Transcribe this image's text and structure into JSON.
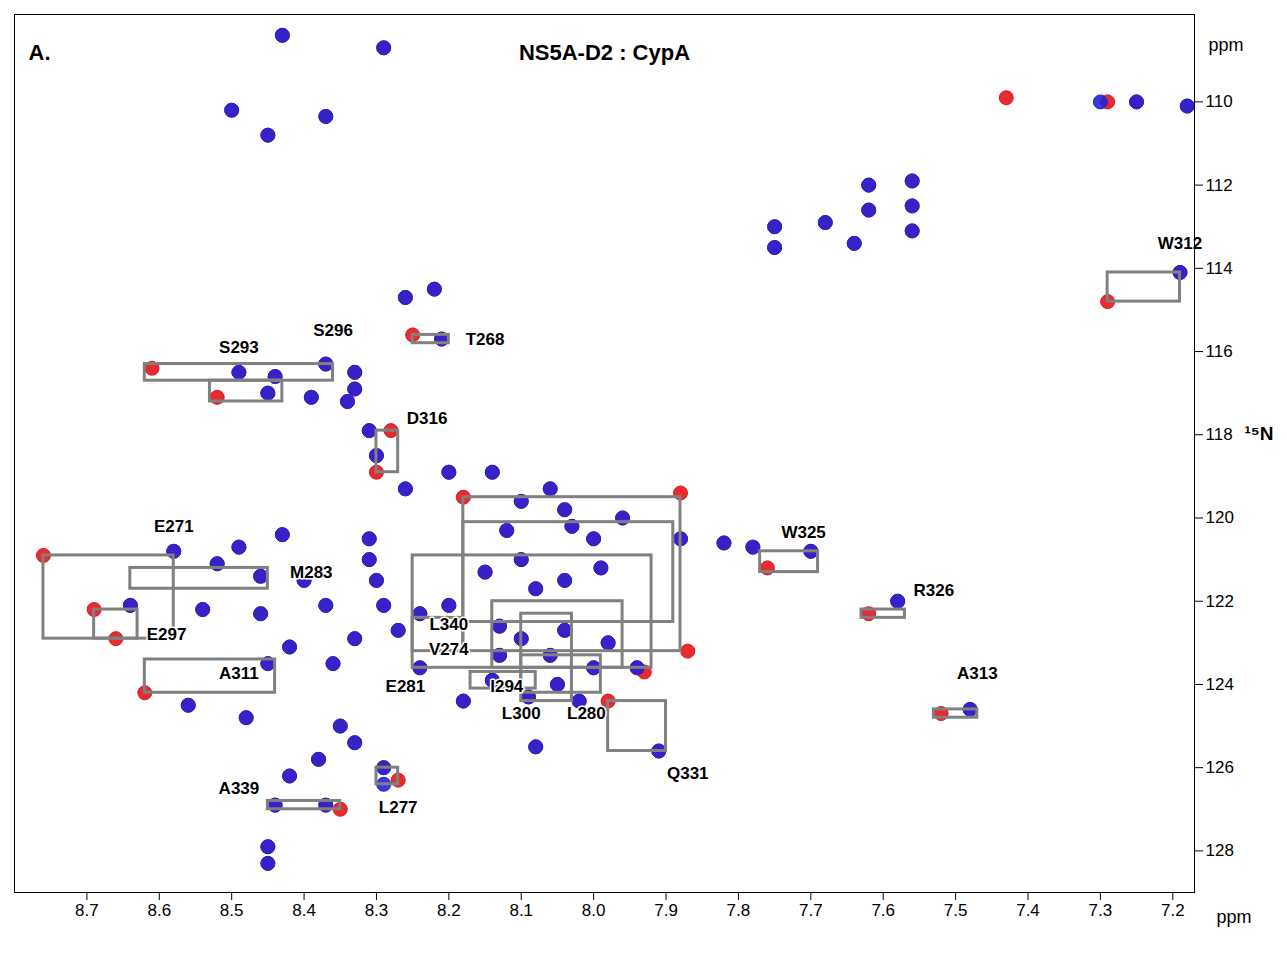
{
  "chart_data": {
    "type": "scatter",
    "title": "NS5A-D2 : CypA",
    "panel": "A.",
    "xlabel": "ppm",
    "ylabel": "¹⁵N",
    "yunit": "ppm",
    "xlim": [
      8.8,
      7.17
    ],
    "ylim": [
      107.9,
      129.0
    ],
    "xticks": [
      8.7,
      8.6,
      8.5,
      8.4,
      8.3,
      8.2,
      8.1,
      {
        "value": 8,
        "label": "8.0"
      },
      7.9,
      7.8,
      7.7,
      7.6,
      7.5,
      7.4,
      7.3,
      7.2
    ],
    "yticks": [
      110,
      112,
      114,
      116,
      118,
      120,
      122,
      124,
      126,
      128
    ],
    "grid": false,
    "series": [
      {
        "color": "#e3141b",
        "x": [
          8.43,
          8.29,
          8.5,
          8.37,
          8.45,
          7.43,
          7.29,
          7.25,
          7.18,
          7.62,
          7.62,
          7.56,
          7.56,
          7.56,
          7.75,
          7.75,
          7.68,
          7.64,
          7.19,
          7.29,
          8.26,
          8.22,
          8.21,
          8.25,
          8.61,
          8.52,
          8.49,
          8.44,
          8.37,
          8.33,
          8.33,
          8.45,
          8.39,
          8.34,
          8.31,
          8.28,
          8.3,
          8.3,
          8.2,
          8.14,
          8.18,
          7.88,
          8.26,
          8.06,
          8.04,
          8.1,
          8.03,
          8.12,
          7.96,
          8.0,
          7.88,
          7.82,
          7.78,
          7.76,
          7.7,
          8.76,
          8.58,
          8.49,
          8.43,
          8.52,
          8.46,
          8.4,
          8.31,
          8.31,
          8.3,
          8.37,
          8.46,
          8.54,
          8.64,
          8.69,
          8.66,
          8.29,
          8.24,
          8.2,
          8.15,
          8.1,
          8.08,
          7.99,
          8.04,
          8.27,
          8.33,
          8.42,
          8.36,
          8.45,
          8.62,
          8.24,
          8.13,
          8.1,
          8.04,
          8.13,
          8.06,
          7.98,
          8.0,
          7.94,
          7.87,
          7.93,
          8.14,
          8.09,
          8.05,
          8.02,
          7.98,
          8.56,
          8.48,
          8.18,
          8.08,
          7.91,
          8.35,
          8.33,
          8.38,
          8.42,
          8.29,
          8.27,
          8.35,
          8.44,
          8.37,
          8.45,
          8.45,
          7.62,
          7.58,
          7.52,
          7.48
        ],
        "y": [
          108.4,
          108.7,
          110.2,
          110.35,
          110.8,
          109.9,
          110.0,
          110.0,
          110.1,
          112.0,
          112.6,
          111.9,
          112.5,
          113.1,
          113.0,
          113.5,
          112.9,
          113.4,
          114.1,
          114.8,
          114.7,
          114.5,
          115.7,
          115.6,
          116.4,
          117.1,
          116.5,
          116.6,
          116.3,
          116.5,
          116.9,
          117.0,
          117.1,
          117.2,
          117.9,
          117.9,
          118.5,
          118.9,
          118.9,
          118.9,
          119.5,
          119.4,
          119.3,
          119.3,
          119.8,
          119.6,
          120.2,
          120.3,
          120.0,
          120.5,
          120.5,
          120.6,
          120.7,
          121.2,
          120.8,
          120.9,
          120.8,
          120.7,
          120.4,
          121.1,
          121.4,
          121.5,
          121.0,
          120.5,
          121.5,
          122.1,
          122.3,
          122.2,
          122.1,
          122.2,
          122.9,
          122.1,
          122.3,
          122.1,
          121.3,
          121.0,
          121.7,
          121.2,
          121.5,
          122.7,
          122.9,
          123.1,
          123.5,
          123.5,
          124.2,
          123.6,
          122.6,
          122.9,
          122.7,
          123.3,
          123.3,
          123.0,
          123.6,
          123.6,
          123.2,
          123.7,
          123.9,
          124.3,
          124.0,
          124.4,
          124.4,
          124.5,
          124.8,
          124.4,
          125.5,
          125.6,
          125.0,
          125.4,
          125.8,
          126.2,
          126.0,
          126.3,
          127.0,
          126.9,
          126.9,
          127.9,
          128.3,
          122.3,
          122.0,
          124.7,
          124.6
        ]
      },
      {
        "color": "#2222d8",
        "x": [
          8.43,
          8.29,
          8.5,
          8.37,
          8.45,
          7.3,
          7.25,
          7.18,
          7.62,
          7.62,
          7.56,
          7.56,
          7.56,
          7.75,
          7.75,
          7.68,
          7.64,
          7.19,
          8.26,
          8.22,
          8.21,
          8.49,
          8.44,
          8.37,
          8.33,
          8.33,
          8.45,
          8.39,
          8.34,
          8.31,
          8.3,
          8.2,
          8.14,
          8.26,
          8.06,
          8.04,
          8.1,
          8.03,
          8.12,
          7.96,
          8.0,
          7.88,
          7.82,
          7.78,
          7.7,
          8.58,
          8.49,
          8.43,
          8.52,
          8.46,
          8.4,
          8.31,
          8.31,
          8.3,
          8.37,
          8.46,
          8.54,
          8.64,
          8.29,
          8.24,
          8.2,
          8.15,
          8.1,
          8.08,
          7.99,
          8.04,
          8.27,
          8.33,
          8.42,
          8.36,
          8.45,
          8.24,
          8.13,
          8.1,
          8.04,
          8.13,
          8.06,
          7.98,
          8.0,
          7.94,
          8.14,
          8.09,
          8.05,
          8.02,
          8.56,
          8.48,
          8.18,
          8.08,
          7.91,
          8.35,
          8.33,
          8.38,
          8.42,
          8.29,
          8.29,
          8.44,
          8.37,
          8.45,
          8.45,
          7.58,
          7.48
        ],
        "y": [
          108.4,
          108.7,
          110.2,
          110.35,
          110.8,
          110.0,
          110.0,
          110.1,
          112.0,
          112.6,
          111.9,
          112.5,
          113.1,
          113.0,
          113.5,
          112.9,
          113.4,
          114.1,
          114.7,
          114.5,
          115.7,
          116.5,
          116.6,
          116.3,
          116.5,
          116.9,
          117.0,
          117.1,
          117.2,
          117.9,
          118.5,
          118.9,
          118.9,
          119.3,
          119.3,
          119.8,
          119.6,
          120.2,
          120.3,
          120.0,
          120.5,
          120.5,
          120.6,
          120.7,
          120.8,
          120.8,
          120.7,
          120.4,
          121.1,
          121.4,
          121.5,
          121.0,
          120.5,
          121.5,
          122.1,
          122.3,
          122.2,
          122.1,
          122.1,
          122.3,
          122.1,
          121.3,
          121.0,
          121.7,
          121.2,
          121.5,
          122.7,
          122.9,
          123.1,
          123.5,
          123.5,
          123.6,
          122.6,
          122.9,
          122.7,
          123.3,
          123.3,
          123.0,
          123.6,
          123.6,
          123.9,
          124.3,
          124.0,
          124.4,
          124.5,
          124.8,
          124.4,
          125.5,
          125.6,
          125.0,
          125.4,
          125.8,
          126.2,
          126.0,
          126.4,
          126.9,
          126.9,
          127.9,
          128.3,
          122.0,
          124.6
        ]
      }
    ],
    "boxes": {
      "color": "#808080",
      "x1": [
        7.29,
        8.25,
        8.62,
        8.53,
        8.3,
        8.76,
        8.64,
        8.69,
        8.62,
        8.45,
        8.3,
        7.77,
        7.63,
        7.53,
        7.98,
        8.18,
        8.18,
        8.25,
        8.14,
        8.1,
        8.25,
        8.17,
        8.1
      ],
      "x2": [
        7.19,
        8.2,
        8.36,
        8.43,
        8.27,
        8.58,
        8.45,
        8.63,
        8.44,
        8.35,
        8.27,
        7.69,
        7.57,
        7.47,
        7.9,
        7.88,
        7.89,
        7.92,
        7.96,
        8.03,
        8.18,
        8.08,
        7.99
      ],
      "y1": [
        114.1,
        115.6,
        116.3,
        116.7,
        117.9,
        120.9,
        121.2,
        122.2,
        123.4,
        126.8,
        126.0,
        120.8,
        122.2,
        124.6,
        124.4,
        119.5,
        120.1,
        120.9,
        122.0,
        122.3,
        122.4,
        123.7,
        123.3
      ],
      "y2": [
        114.8,
        115.8,
        116.7,
        117.2,
        118.9,
        122.9,
        121.7,
        122.9,
        124.2,
        127.0,
        126.4,
        121.3,
        122.4,
        124.8,
        125.6,
        123.2,
        122.5,
        123.6,
        123.6,
        124.4,
        123.2,
        124.1,
        124.2
      ]
    },
    "annotations": [
      {
        "text": "W312",
        "x": 7.19,
        "y": 113.4
      },
      {
        "text": "T268",
        "x": 8.15,
        "y": 115.7
      },
      {
        "text": "S293",
        "x": 8.49,
        "y": 115.9
      },
      {
        "text": "S296",
        "x": 8.36,
        "y": 115.5
      },
      {
        "text": "D316",
        "x": 8.23,
        "y": 117.6
      },
      {
        "text": "E271",
        "x": 8.58,
        "y": 120.2
      },
      {
        "text": "M283",
        "x": 8.39,
        "y": 121.3
      },
      {
        "text": "E297",
        "x": 8.59,
        "y": 122.8
      },
      {
        "text": "L340",
        "x": 8.2,
        "y": 122.55
      },
      {
        "text": "V274",
        "x": 8.2,
        "y": 123.15
      },
      {
        "text": "A311",
        "x": 8.49,
        "y": 123.75
      },
      {
        "text": "E281",
        "x": 8.26,
        "y": 124.05
      },
      {
        "text": "I294",
        "x": 8.12,
        "y": 124.05
      },
      {
        "text": "L300",
        "x": 8.1,
        "y": 124.7
      },
      {
        "text": "L280",
        "x": 8.01,
        "y": 124.7
      },
      {
        "text": "Q331",
        "x": 7.87,
        "y": 126.15
      },
      {
        "text": "A339",
        "x": 8.49,
        "y": 126.5
      },
      {
        "text": "L277",
        "x": 8.27,
        "y": 126.95
      },
      {
        "text": "W325",
        "x": 7.71,
        "y": 120.35
      },
      {
        "text": "R326",
        "x": 7.53,
        "y": 121.75
      },
      {
        "text": "A313",
        "x": 7.47,
        "y": 123.75
      }
    ]
  }
}
